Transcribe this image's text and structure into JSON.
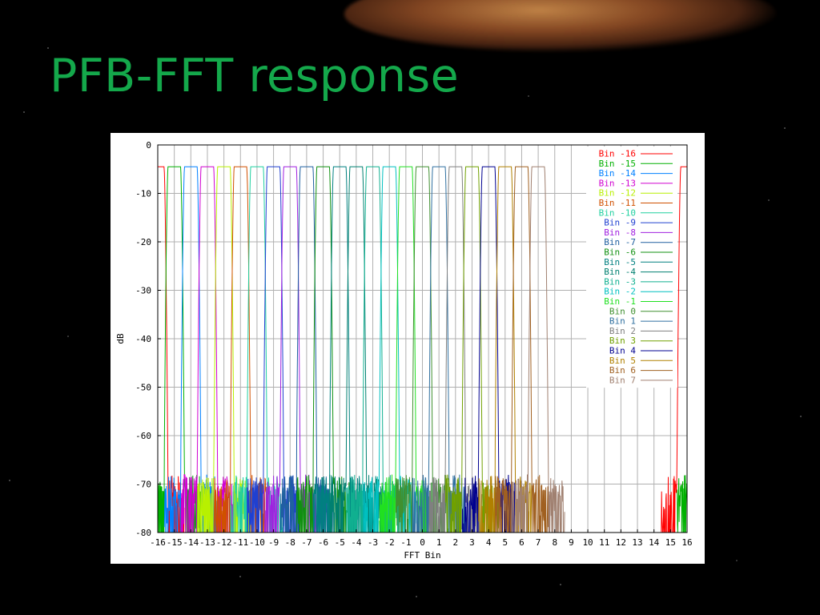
{
  "slide": {
    "title": "PFB-FFT response"
  },
  "chart_data": {
    "type": "line",
    "xlabel": "FFT Bin",
    "ylabel": "dB",
    "xlim": [
      -16,
      16
    ],
    "ylim": [
      -80,
      0
    ],
    "x_ticks": [
      -16,
      -15,
      -14,
      -13,
      -12,
      -11,
      -10,
      -9,
      -8,
      -7,
      -6,
      -5,
      -4,
      -3,
      -2,
      -1,
      0,
      1,
      2,
      3,
      4,
      5,
      6,
      7,
      8,
      9,
      10,
      11,
      12,
      13,
      14,
      15,
      16
    ],
    "y_ticks": [
      0,
      -10,
      -20,
      -30,
      -40,
      -50,
      -60,
      -70,
      -80
    ],
    "grid": true,
    "legend_position": "top-right",
    "passband_level_db": -4.5,
    "stopband_floor_db": -70,
    "series": [
      {
        "name": "Bin -16",
        "center": -16,
        "color": "#ff0000"
      },
      {
        "name": "Bin -15",
        "center": -15,
        "color": "#00b000"
      },
      {
        "name": "Bin -14",
        "center": -14,
        "color": "#0080ff"
      },
      {
        "name": "Bin -13",
        "center": -13,
        "color": "#d000d0"
      },
      {
        "name": "Bin -12",
        "center": -12,
        "color": "#b8f000"
      },
      {
        "name": "Bin -11",
        "center": -11,
        "color": "#d05000"
      },
      {
        "name": "Bin -10",
        "center": -10,
        "color": "#20d0a0"
      },
      {
        "name": "Bin -9",
        "center": -9,
        "color": "#2040d0"
      },
      {
        "name": "Bin -8",
        "center": -8,
        "color": "#a020e0"
      },
      {
        "name": "Bin -7",
        "center": -7,
        "color": "#2060a0"
      },
      {
        "name": "Bin -6",
        "center": -6,
        "color": "#109010"
      },
      {
        "name": "Bin -5",
        "center": -5,
        "color": "#008080"
      },
      {
        "name": "Bin -4",
        "center": -4,
        "color": "#008070"
      },
      {
        "name": "Bin -3",
        "center": -3,
        "color": "#10b090"
      },
      {
        "name": "Bin -2",
        "center": -2,
        "color": "#00c0c0"
      },
      {
        "name": "Bin -1",
        "center": -1,
        "color": "#20e020"
      },
      {
        "name": "Bin 0",
        "center": 0,
        "color": "#409030"
      },
      {
        "name": "Bin 1",
        "center": 1,
        "color": "#3070a0"
      },
      {
        "name": "Bin 2",
        "center": 2,
        "color": "#808080"
      },
      {
        "name": "Bin 3",
        "center": 3,
        "color": "#70a000"
      },
      {
        "name": "Bin 4",
        "center": 4,
        "color": "#000090"
      },
      {
        "name": "Bin 5",
        "center": 5,
        "color": "#b08000"
      },
      {
        "name": "Bin 6",
        "center": 6,
        "color": "#a06020"
      },
      {
        "name": "Bin 7",
        "center": 7,
        "color": "#a08070"
      }
    ],
    "unlabeled_wrap_series": [
      {
        "center": 16,
        "color": "#ff0000"
      },
      {
        "center": 17,
        "color": "#00b000"
      }
    ]
  }
}
